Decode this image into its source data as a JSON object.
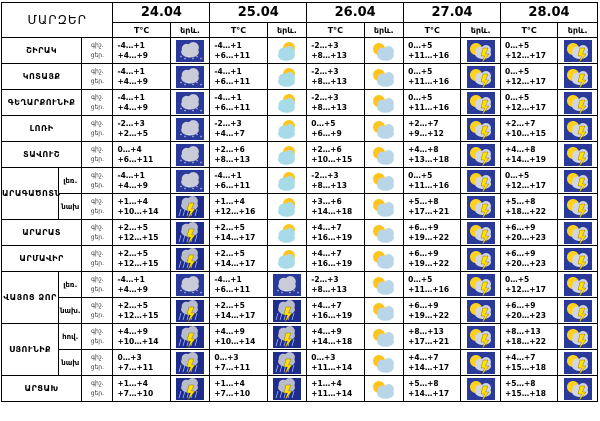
{
  "header": {
    "title": "ՄԱՐԶԵՐ",
    "dates": [
      "24.04",
      "25.04",
      "26.04",
      "27.04",
      "28.04"
    ],
    "temp_label": "T°C",
    "icon_label": "երև."
  },
  "labels": {
    "day": "գիշ.",
    "night": "ցեր."
  },
  "rows": [
    {
      "region": "ՇԻՐԱԿ",
      "sub": "",
      "cells": [
        {
          "t1": "-4…+1",
          "t2": "+4…+9",
          "icon": "snow-rain-icon"
        },
        {
          "t1": "-4…+1",
          "t2": "+6…+11",
          "icon": "partly-cloudy-icon"
        },
        {
          "t1": "-2…+3",
          "t2": "+8…+13",
          "icon": "cloud-sun-icon"
        },
        {
          "t1": "0…+5",
          "t2": "+11…+16",
          "icon": "sun-storm-icon"
        },
        {
          "t1": "0…+5",
          "t2": "+12…+17",
          "icon": "sun-storm-icon"
        }
      ]
    },
    {
      "region": "ԿՈՏԱՅՔ",
      "sub": "",
      "cells": [
        {
          "t1": "-4…+1",
          "t2": "+4…+9",
          "icon": "snow-rain-icon"
        },
        {
          "t1": "-4…+1",
          "t2": "+6…+11",
          "icon": "partly-cloudy-icon"
        },
        {
          "t1": "-2…+3",
          "t2": "+8…+13",
          "icon": "cloud-sun-icon"
        },
        {
          "t1": "0…+5",
          "t2": "+11…+16",
          "icon": "sun-storm-icon"
        },
        {
          "t1": "0…+5",
          "t2": "+12…+17",
          "icon": "sun-storm-icon"
        }
      ]
    },
    {
      "region": "ԳԵՂԱՐՔՈՒՆԻՔ",
      "sub": "",
      "cells": [
        {
          "t1": "-4…+1",
          "t2": "+4…+9",
          "icon": "snow-rain-icon"
        },
        {
          "t1": "-4…+1",
          "t2": "+6…+11",
          "icon": "partly-cloudy-icon"
        },
        {
          "t1": "-2…+3",
          "t2": "+8…+13",
          "icon": "cloud-sun-icon"
        },
        {
          "t1": "0…+5",
          "t2": "+11…+16",
          "icon": "sun-storm-icon"
        },
        {
          "t1": "0…+5",
          "t2": "+12…+17",
          "icon": "sun-storm-icon"
        }
      ]
    },
    {
      "region": "ԼՈՌԻ",
      "sub": "",
      "cells": [
        {
          "t1": "-2…+3",
          "t2": "+2…+5",
          "icon": "snow-rain-icon"
        },
        {
          "t1": "-2…+3",
          "t2": "+4…+7",
          "icon": "partly-cloudy-icon"
        },
        {
          "t1": "0…+5",
          "t2": "+6…+9",
          "icon": "cloud-sun-icon"
        },
        {
          "t1": "+2…+7",
          "t2": "+9…+12",
          "icon": "sun-storm-icon"
        },
        {
          "t1": "+2…+7",
          "t2": "+10…+15",
          "icon": "sun-storm-icon"
        }
      ]
    },
    {
      "region": "ՏԱՎՈՒՇ",
      "sub": "",
      "cells": [
        {
          "t1": "0…+4",
          "t2": "+6…+11",
          "icon": "snow-rain-icon"
        },
        {
          "t1": "+2…+6",
          "t2": "+8…+13",
          "icon": "partly-cloudy-icon"
        },
        {
          "t1": "+2…+6",
          "t2": "+10…+15",
          "icon": "cloud-sun-icon"
        },
        {
          "t1": "+4…+8",
          "t2": "+13…+18",
          "icon": "sun-storm-icon"
        },
        {
          "t1": "+4…+8",
          "t2": "+14…+19",
          "icon": "sun-storm-icon"
        }
      ]
    },
    {
      "region": "ԱՐԱԳԱԾՈՏՆ",
      "sub": "լեռ.",
      "cells": [
        {
          "t1": "-4…+1",
          "t2": "+4…+9",
          "icon": "snow-rain-icon"
        },
        {
          "t1": "-4…+1",
          "t2": "+6…+11",
          "icon": "partly-cloudy-icon"
        },
        {
          "t1": "-2…+3",
          "t2": "+8…+13",
          "icon": "cloud-sun-icon"
        },
        {
          "t1": "0…+5",
          "t2": "+11…+16",
          "icon": "sun-storm-icon"
        },
        {
          "t1": "0…+5",
          "t2": "+12…+17",
          "icon": "sun-storm-icon"
        }
      ]
    },
    {
      "region": "",
      "sub": "նախ",
      "cells": [
        {
          "t1": "+1…+4",
          "t2": "+10…+14",
          "icon": "rain-storm-icon"
        },
        {
          "t1": "+1…+4",
          "t2": "+12…+16",
          "icon": "partly-cloudy-icon"
        },
        {
          "t1": "+3…+6",
          "t2": "+14…+18",
          "icon": "cloud-sun-icon"
        },
        {
          "t1": "+5…+8",
          "t2": "+17…+21",
          "icon": "sun-storm-icon"
        },
        {
          "t1": "+5…+8",
          "t2": "+18…+22",
          "icon": "sun-storm-icon"
        }
      ]
    },
    {
      "region": "ԱՐԱՐԱՏ",
      "sub": "",
      "cells": [
        {
          "t1": "+2…+5",
          "t2": "+12…+15",
          "icon": "rain-storm-icon"
        },
        {
          "t1": "+2…+5",
          "t2": "+14…+17",
          "icon": "partly-cloudy-icon"
        },
        {
          "t1": "+4…+7",
          "t2": "+16…+19",
          "icon": "cloud-sun-icon"
        },
        {
          "t1": "+6…+9",
          "t2": "+19…+22",
          "icon": "sun-storm-icon"
        },
        {
          "t1": "+6…+9",
          "t2": "+20…+23",
          "icon": "sun-storm-icon"
        }
      ]
    },
    {
      "region": "ԱՐՄԱՎԻՐ",
      "sub": "",
      "cells": [
        {
          "t1": "+2…+5",
          "t2": "+12…+15",
          "icon": "rain-storm-icon"
        },
        {
          "t1": "+2…+5",
          "t2": "+14…+17",
          "icon": "partly-cloudy-icon"
        },
        {
          "t1": "+4…+7",
          "t2": "+16…+19",
          "icon": "cloud-sun-icon"
        },
        {
          "t1": "+6…+9",
          "t2": "+19…+22",
          "icon": "sun-storm-icon"
        },
        {
          "t1": "+6…+9",
          "t2": "+20…+23",
          "icon": "sun-storm-icon"
        }
      ]
    },
    {
      "region": "ՎԱՅՈՑ ՁՈՐ",
      "sub": "լեռ.",
      "cells": [
        {
          "t1": "-4…+1",
          "t2": "+4…+9",
          "icon": "snow-rain-icon"
        },
        {
          "t1": "-4…+1",
          "t2": "+6…+11",
          "icon": "snow-cloud-icon"
        },
        {
          "t1": "-2…+3",
          "t2": "+8…+13",
          "icon": "cloud-sun-icon"
        },
        {
          "t1": "0…+5",
          "t2": "+11…+16",
          "icon": "sun-storm-icon"
        },
        {
          "t1": "0…+5",
          "t2": "+12…+17",
          "icon": "sun-storm-icon"
        }
      ]
    },
    {
      "region": "",
      "sub": "նախ.",
      "cells": [
        {
          "t1": "+2…+5",
          "t2": "+12…+15",
          "icon": "rain-storm-icon"
        },
        {
          "t1": "+2…+5",
          "t2": "+14…+17",
          "icon": "rain-storm-icon"
        },
        {
          "t1": "+4…+7",
          "t2": "+16…+19",
          "icon": "cloud-sun-icon"
        },
        {
          "t1": "+6…+9",
          "t2": "+19…+22",
          "icon": "sun-storm-icon"
        },
        {
          "t1": "+6…+9",
          "t2": "+20…+23",
          "icon": "sun-storm-icon"
        }
      ]
    },
    {
      "region": "ՍՅՈՒՆԻՔ",
      "sub": "հով.",
      "cells": [
        {
          "t1": "+4…+9",
          "t2": "+10…+14",
          "icon": "rain-storm-icon"
        },
        {
          "t1": "+4…+9",
          "t2": "+10…+14",
          "icon": "rain-storm-icon"
        },
        {
          "t1": "+4…+9",
          "t2": "+14…+18",
          "icon": "cloud-sun-icon"
        },
        {
          "t1": "+8…+13",
          "t2": "+17…+21",
          "icon": "sun-storm-icon"
        },
        {
          "t1": "+8…+13",
          "t2": "+18…+22",
          "icon": "sun-storm-icon"
        }
      ]
    },
    {
      "region": "",
      "sub": "նախ",
      "cells": [
        {
          "t1": "0…+3",
          "t2": "+7…+11",
          "icon": "rain-storm-icon"
        },
        {
          "t1": "0…+3",
          "t2": "+7…+11",
          "icon": "rain-storm-icon"
        },
        {
          "t1": "0…+3",
          "t2": "+11…+14",
          "icon": "cloud-sun-icon"
        },
        {
          "t1": "+4…+7",
          "t2": "+14…+17",
          "icon": "sun-storm-icon"
        },
        {
          "t1": "+4…+7",
          "t2": "+15…+18",
          "icon": "sun-storm-icon"
        }
      ]
    },
    {
      "region": "ԱՐՑԱԽ",
      "sub": "",
      "cells": [
        {
          "t1": "+1…+4",
          "t2": "+7…+10",
          "icon": "rain-storm-icon"
        },
        {
          "t1": "+1…+4",
          "t2": "+7…+10",
          "icon": "rain-storm-icon"
        },
        {
          "t1": "+1…+4",
          "t2": "+11…+14",
          "icon": "cloud-sun-icon"
        },
        {
          "t1": "+5…+8",
          "t2": "+14…+17",
          "icon": "sun-storm-icon"
        },
        {
          "t1": "+5…+8",
          "t2": "+15…+18",
          "icon": "sun-storm-icon"
        }
      ]
    }
  ]
}
